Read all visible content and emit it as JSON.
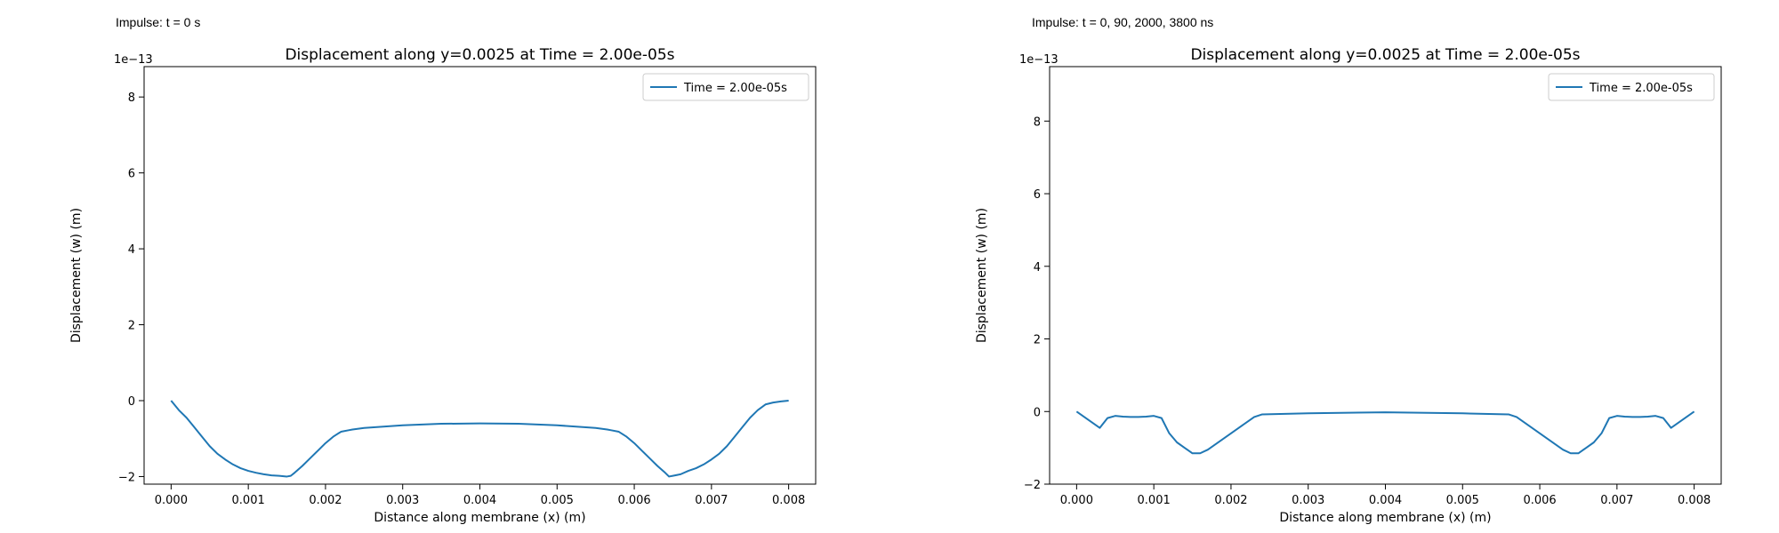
{
  "chart_data": [
    {
      "type": "line",
      "caption": "Impulse: t = 0 s",
      "title": "Displacement along y=0.0025 at Time = 2.00e-05s",
      "xlabel": "Distance along membrane (x) (m)",
      "ylabel": "Displacement (w) (m)",
      "y_offset_label": "1e−13",
      "xlim": [
        -0.00035,
        0.00835
      ],
      "ylim": [
        -2.2,
        8.8
      ],
      "x_ticks": [
        0.0,
        0.001,
        0.002,
        0.003,
        0.004,
        0.005,
        0.006,
        0.007,
        0.008
      ],
      "x_tick_labels": [
        "0.000",
        "0.001",
        "0.002",
        "0.003",
        "0.004",
        "0.005",
        "0.006",
        "0.007",
        "0.008"
      ],
      "y_ticks": [
        -2,
        0,
        2,
        4,
        6,
        8
      ],
      "y_tick_labels": [
        "−2",
        "0",
        "2",
        "4",
        "6",
        "8"
      ],
      "grid": false,
      "legend_position": "top-right",
      "color": "#1f77b4",
      "series": [
        {
          "name": "Time = 2.00e-05s",
          "x": [
            0.0,
            0.0001,
            0.0002,
            0.0003,
            0.0004,
            0.0005,
            0.0006,
            0.0007,
            0.0008,
            0.0009,
            0.001,
            0.0011,
            0.0012,
            0.0013,
            0.0014,
            0.0015,
            0.00155,
            0.0016,
            0.0017,
            0.0018,
            0.0019,
            0.002,
            0.0021,
            0.0022,
            0.0023,
            0.00235,
            0.0025,
            0.003,
            0.0035,
            0.004,
            0.0045,
            0.005,
            0.0055,
            0.00565,
            0.0057,
            0.0058,
            0.0059,
            0.006,
            0.0061,
            0.0062,
            0.0063,
            0.0064,
            0.00645,
            0.0065,
            0.0066,
            0.0067,
            0.0068,
            0.0069,
            0.007,
            0.0071,
            0.0072,
            0.0073,
            0.0074,
            0.0075,
            0.0076,
            0.0077,
            0.0078,
            0.0079,
            0.008
          ],
          "y": [
            0.0,
            -0.25,
            -0.45,
            -0.7,
            -0.95,
            -1.2,
            -1.4,
            -1.55,
            -1.68,
            -1.78,
            -1.85,
            -1.9,
            -1.94,
            -1.97,
            -1.98,
            -2.0,
            -1.98,
            -1.9,
            -1.72,
            -1.52,
            -1.32,
            -1.12,
            -0.95,
            -0.82,
            -0.78,
            -0.76,
            -0.72,
            -0.65,
            -0.61,
            -0.6,
            -0.61,
            -0.65,
            -0.72,
            -0.76,
            -0.78,
            -0.82,
            -0.95,
            -1.12,
            -1.32,
            -1.52,
            -1.72,
            -1.9,
            -2.0,
            -1.98,
            -1.94,
            -1.85,
            -1.78,
            -1.68,
            -1.55,
            -1.4,
            -1.2,
            -0.95,
            -0.7,
            -0.45,
            -0.25,
            -0.1,
            -0.05,
            -0.02,
            0.0
          ]
        }
      ]
    },
    {
      "type": "line",
      "caption": "Impulse: t = 0, 90, 2000, 3800 ns",
      "title": "Displacement along y=0.0025 at Time = 2.00e-05s",
      "xlabel": "Distance along membrane (x) (m)",
      "ylabel": "Displacement (w) (m)",
      "y_offset_label": "1e−13",
      "xlim": [
        -0.00035,
        0.00835
      ],
      "ylim": [
        -2.0,
        9.5
      ],
      "x_ticks": [
        0.0,
        0.001,
        0.002,
        0.003,
        0.004,
        0.005,
        0.006,
        0.007,
        0.008
      ],
      "x_tick_labels": [
        "0.000",
        "0.001",
        "0.002",
        "0.003",
        "0.004",
        "0.005",
        "0.006",
        "0.007",
        "0.008"
      ],
      "y_ticks": [
        -2,
        0,
        2,
        4,
        6,
        8
      ],
      "y_tick_labels": [
        "−2",
        "0",
        "2",
        "4",
        "6",
        "8"
      ],
      "grid": false,
      "legend_position": "top-right",
      "color": "#1f77b4",
      "series": [
        {
          "name": "Time = 2.00e-05s",
          "x": [
            0.0,
            0.0001,
            0.0002,
            0.0003,
            0.0004,
            0.0005,
            0.0006,
            0.0007,
            0.0008,
            0.0009,
            0.001,
            0.0011,
            0.0012,
            0.0013,
            0.0014,
            0.0015,
            0.0016,
            0.0017,
            0.0018,
            0.0019,
            0.002,
            0.0021,
            0.0022,
            0.0023,
            0.0024,
            0.003,
            0.004,
            0.005,
            0.0056,
            0.0057,
            0.0058,
            0.0059,
            0.006,
            0.0061,
            0.0062,
            0.0063,
            0.0064,
            0.0065,
            0.0066,
            0.0067,
            0.0068,
            0.0069,
            0.007,
            0.0071,
            0.0072,
            0.0073,
            0.0074,
            0.0075,
            0.0076,
            0.0077,
            0.0078,
            0.0079,
            0.008
          ],
          "y": [
            0.0,
            -0.15,
            -0.3,
            -0.45,
            -0.18,
            -0.12,
            -0.14,
            -0.15,
            -0.15,
            -0.14,
            -0.12,
            -0.18,
            -0.6,
            -0.85,
            -1.0,
            -1.15,
            -1.15,
            -1.05,
            -0.9,
            -0.75,
            -0.6,
            -0.45,
            -0.3,
            -0.15,
            -0.08,
            -0.05,
            -0.02,
            -0.05,
            -0.08,
            -0.15,
            -0.3,
            -0.45,
            -0.6,
            -0.75,
            -0.9,
            -1.05,
            -1.15,
            -1.15,
            -1.0,
            -0.85,
            -0.6,
            -0.18,
            -0.12,
            -0.14,
            -0.15,
            -0.15,
            -0.14,
            -0.12,
            -0.18,
            -0.45,
            -0.3,
            -0.15,
            0.0
          ]
        }
      ]
    }
  ]
}
